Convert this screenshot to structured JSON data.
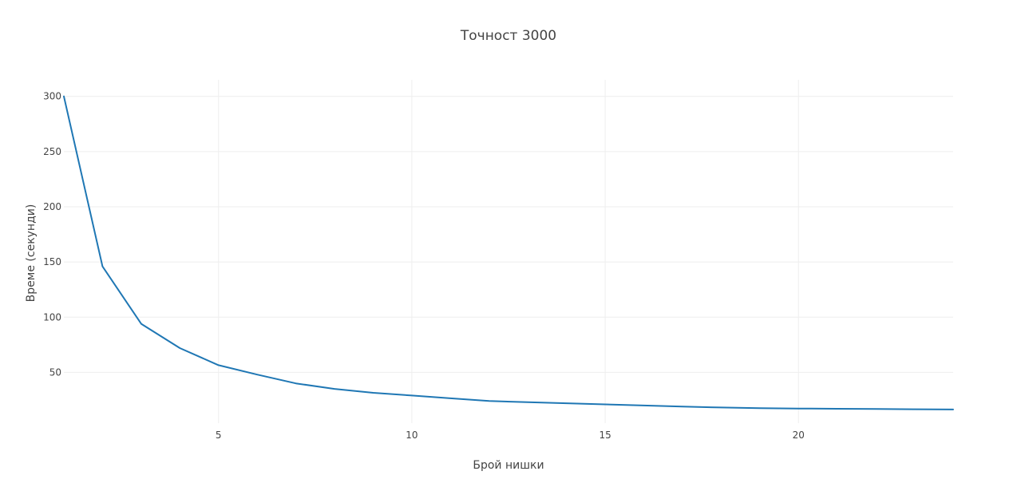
{
  "chart_data": {
    "type": "line",
    "title": "Точност 3000",
    "xlabel": "Брой нишки",
    "ylabel": "Време (секунди)",
    "xlim": [
      1,
      24
    ],
    "ylim": [
      4,
      315
    ],
    "x_ticks": [
      5,
      10,
      15,
      20
    ],
    "y_ticks": [
      50,
      100,
      150,
      200,
      250,
      300
    ],
    "grid": true,
    "legend": "none",
    "series": [
      {
        "color": "#1f77b4",
        "x": [
          1,
          2,
          3,
          4,
          5,
          6,
          7,
          8,
          9,
          10,
          11,
          12,
          13,
          14,
          15,
          16,
          17,
          18,
          19,
          20,
          21,
          22,
          23,
          24
        ],
        "y": [
          300,
          146,
          94,
          72,
          56.5,
          48,
          40,
          35,
          31.5,
          29,
          26.5,
          24,
          23,
          22,
          21,
          20,
          19,
          18.2,
          17.6,
          17.2,
          17.0,
          16.8,
          16.6,
          16.4
        ]
      }
    ]
  }
}
